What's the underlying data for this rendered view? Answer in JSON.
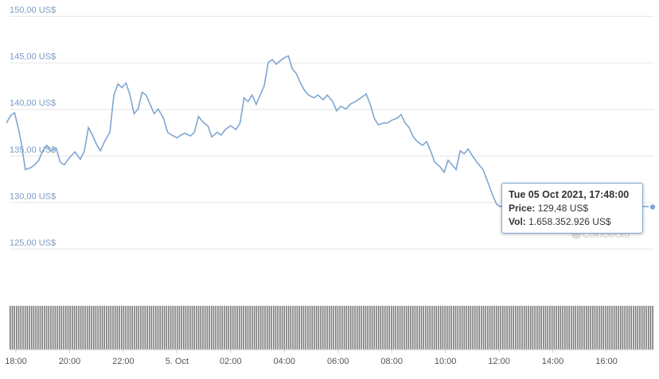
{
  "chart_data": {
    "type": "line",
    "title": "",
    "y_axis": {
      "ylim": [
        125,
        150
      ],
      "ticks": [
        125,
        130,
        135,
        140,
        145,
        150
      ],
      "tick_labels": [
        "125,00 US$",
        "130,00 US$",
        "135,00 US$",
        "140,00 US$",
        "145,00 US$",
        "150,00 US$"
      ]
    },
    "x_axis": {
      "range_hours": [
        17.65,
        41.9
      ],
      "ticks": [
        18,
        20,
        22,
        24,
        26,
        28,
        30,
        32,
        34,
        36,
        38,
        40
      ],
      "tick_labels": [
        "18:00",
        "20:00",
        "22:00",
        "5. Oct",
        "02:00",
        "04:00",
        "06:00",
        "08:00",
        "10:00",
        "12:00",
        "14:00",
        "16:00"
      ]
    },
    "series": [
      {
        "points": [
          [
            17.65,
            138.5
          ],
          [
            17.8,
            139.3
          ],
          [
            17.95,
            139.6
          ],
          [
            18.1,
            137.8
          ],
          [
            18.2,
            136.4
          ],
          [
            18.35,
            133.5
          ],
          [
            18.55,
            133.7
          ],
          [
            18.7,
            134.0
          ],
          [
            18.85,
            134.5
          ],
          [
            19.0,
            135.5
          ],
          [
            19.15,
            136.1
          ],
          [
            19.3,
            135.5
          ],
          [
            19.5,
            135.8
          ],
          [
            19.65,
            134.3
          ],
          [
            19.8,
            134.0
          ],
          [
            20.0,
            134.8
          ],
          [
            20.2,
            135.4
          ],
          [
            20.4,
            134.6
          ],
          [
            20.55,
            135.5
          ],
          [
            20.7,
            138.0
          ],
          [
            20.85,
            137.2
          ],
          [
            21.0,
            136.2
          ],
          [
            21.15,
            135.5
          ],
          [
            21.3,
            136.5
          ],
          [
            21.5,
            137.5
          ],
          [
            21.65,
            141.5
          ],
          [
            21.8,
            142.7
          ],
          [
            21.95,
            142.3
          ],
          [
            22.1,
            142.8
          ],
          [
            22.25,
            141.5
          ],
          [
            22.4,
            139.5
          ],
          [
            22.55,
            140.0
          ],
          [
            22.7,
            141.8
          ],
          [
            22.85,
            141.5
          ],
          [
            23.0,
            140.5
          ],
          [
            23.15,
            139.5
          ],
          [
            23.3,
            140.0
          ],
          [
            23.5,
            139.0
          ],
          [
            23.65,
            137.5
          ],
          [
            23.8,
            137.2
          ],
          [
            24.0,
            136.9
          ],
          [
            24.15,
            137.2
          ],
          [
            24.3,
            137.4
          ],
          [
            24.5,
            137.1
          ],
          [
            24.65,
            137.5
          ],
          [
            24.8,
            139.2
          ],
          [
            25.0,
            138.5
          ],
          [
            25.15,
            138.2
          ],
          [
            25.3,
            137.0
          ],
          [
            25.5,
            137.5
          ],
          [
            25.65,
            137.2
          ],
          [
            25.8,
            137.8
          ],
          [
            26.0,
            138.2
          ],
          [
            26.2,
            137.8
          ],
          [
            26.35,
            138.5
          ],
          [
            26.5,
            141.2
          ],
          [
            26.65,
            140.8
          ],
          [
            26.8,
            141.5
          ],
          [
            26.95,
            140.5
          ],
          [
            27.1,
            141.5
          ],
          [
            27.25,
            142.5
          ],
          [
            27.4,
            145.0
          ],
          [
            27.55,
            145.3
          ],
          [
            27.7,
            144.8
          ],
          [
            27.85,
            145.2
          ],
          [
            28.0,
            145.5
          ],
          [
            28.15,
            145.7
          ],
          [
            28.3,
            144.3
          ],
          [
            28.45,
            143.8
          ],
          [
            28.6,
            142.8
          ],
          [
            28.75,
            142.0
          ],
          [
            28.9,
            141.5
          ],
          [
            29.1,
            141.2
          ],
          [
            29.25,
            141.5
          ],
          [
            29.45,
            141.0
          ],
          [
            29.6,
            141.5
          ],
          [
            29.8,
            140.8
          ],
          [
            29.95,
            139.8
          ],
          [
            30.1,
            140.3
          ],
          [
            30.3,
            140.0
          ],
          [
            30.45,
            140.5
          ],
          [
            30.65,
            140.8
          ],
          [
            30.85,
            141.2
          ],
          [
            31.05,
            141.6
          ],
          [
            31.2,
            140.5
          ],
          [
            31.35,
            139.0
          ],
          [
            31.5,
            138.3
          ],
          [
            31.7,
            138.5
          ],
          [
            31.85,
            138.5
          ],
          [
            32.0,
            138.8
          ],
          [
            32.2,
            139.0
          ],
          [
            32.35,
            139.4
          ],
          [
            32.5,
            138.5
          ],
          [
            32.65,
            138.0
          ],
          [
            32.8,
            137.0
          ],
          [
            32.95,
            136.5
          ],
          [
            33.15,
            136.1
          ],
          [
            33.3,
            136.5
          ],
          [
            33.45,
            135.5
          ],
          [
            33.6,
            134.3
          ],
          [
            33.8,
            133.8
          ],
          [
            33.95,
            133.2
          ],
          [
            34.1,
            134.5
          ],
          [
            34.25,
            134.0
          ],
          [
            34.4,
            133.5
          ],
          [
            34.55,
            135.5
          ],
          [
            34.7,
            135.2
          ],
          [
            34.85,
            135.7
          ],
          [
            35.0,
            135.0
          ],
          [
            35.2,
            134.2
          ],
          [
            35.4,
            133.5
          ],
          [
            35.6,
            132.0
          ],
          [
            35.75,
            130.8
          ],
          [
            35.9,
            129.8
          ],
          [
            36.05,
            129.5
          ],
          [
            36.2,
            130.0
          ],
          [
            36.4,
            129.7
          ],
          [
            36.55,
            129.8
          ],
          [
            36.7,
            130.8
          ],
          [
            36.85,
            130.0
          ],
          [
            37.05,
            130.5
          ],
          [
            37.2,
            129.8
          ],
          [
            37.35,
            129.5
          ],
          [
            37.5,
            130.3
          ],
          [
            37.7,
            129.7
          ],
          [
            37.85,
            130.5
          ],
          [
            38.0,
            130.2
          ]
        ]
      }
    ],
    "volume_bars": {
      "heights_rel": [
        0.58,
        0.58,
        0.58,
        0.58,
        0.58,
        0.58,
        0.58,
        0.58,
        0.58,
        0.58,
        0.58,
        0.58,
        0.58,
        0.58,
        0.58,
        0.58,
        0.58,
        0.58,
        0.58,
        0.58,
        0.58,
        0.58,
        0.58,
        0.58,
        0.58,
        0.58,
        0.58,
        0.58,
        0.58,
        0.58,
        0.58,
        0.58,
        0.58,
        0.58,
        0.58,
        0.58,
        0.58,
        0.58,
        0.58,
        0.58,
        0.58,
        0.58,
        0.58,
        0.58,
        0.58,
        0.58,
        0.58,
        0.58,
        0.58,
        0.58,
        0.58,
        0.58,
        0.58,
        0.58,
        0.58,
        0.58,
        0.58,
        0.58,
        0.58,
        0.58,
        0.58,
        0.58,
        0.58,
        0.58,
        0.58,
        0.58,
        0.58,
        0.58,
        0.58,
        0.58,
        0.58,
        0.58,
        0.58,
        0.58,
        0.58,
        0.58,
        0.58,
        0.58,
        0.58,
        0.58,
        0.58,
        0.58,
        0.58,
        0.58,
        0.58,
        0.58,
        0.58,
        0.58,
        0.58,
        0.58,
        0.58,
        0.58,
        0.58,
        0.58,
        0.58,
        0.58,
        0.58,
        0.58,
        0.58,
        0.58,
        0.58,
        0.58,
        0.58,
        0.58,
        0.58,
        0.58,
        0.58,
        0.58,
        0.58,
        0.58,
        0.58,
        0.58,
        0.58,
        0.58,
        0.58,
        0.58,
        0.58,
        0.58,
        0.58,
        0.58,
        0.58,
        0.58,
        0.58,
        0.58,
        0.58,
        0.58,
        0.58,
        0.58,
        0.58,
        0.58,
        0.58,
        0.58,
        0.58,
        0.58,
        0.58,
        0.58,
        0.58,
        0.58,
        0.58,
        0.58,
        0.58,
        0.58,
        0.58,
        0.58,
        0.58,
        0.58,
        0.58,
        0.58,
        0.58,
        0.58,
        0.58,
        0.58,
        0.58,
        0.58,
        0.58,
        0.58,
        0.58,
        0.58,
        0.58,
        0.58,
        0.58,
        0.58,
        0.58,
        0.58,
        0.58,
        0.58,
        0.58,
        0.58,
        0.58,
        0.58,
        0.58,
        0.58,
        0.58,
        0.58,
        0.58,
        0.58,
        0.58,
        0.58,
        0.58,
        0.58,
        0.58,
        0.58,
        0.58,
        0.58,
        0.58,
        0.58,
        0.58,
        0.58,
        0.58,
        0.58,
        0.58,
        0.58,
        0.58,
        0.58,
        0.58,
        0.58,
        0.58,
        0.58,
        0.58,
        0.58,
        0.58,
        0.58,
        0.58,
        0.58,
        0.58,
        0.58,
        0.58,
        0.58,
        0.58,
        0.58,
        0.58,
        0.58,
        0.58,
        0.58,
        0.58,
        0.58,
        0.58,
        0.58,
        0.58,
        0.58,
        0.58,
        0.58,
        0.58,
        0.58,
        0.58,
        0.58,
        0.58,
        0.58,
        0.58,
        0.58,
        0.58,
        0.58,
        0.58,
        0.58,
        0.58,
        0.58,
        0.58,
        0.58,
        0.58,
        0.58,
        0.58,
        0.58,
        0.58,
        0.58,
        0.58,
        0.58,
        0.58,
        0.58,
        0.58,
        0.58,
        0.58,
        0.58,
        0.58,
        0.58,
        0.58,
        0.58,
        0.58,
        0.58,
        0.58,
        0.58,
        0.58,
        0.58,
        0.58,
        0.58,
        0.58,
        0.58,
        0.58,
        0.58,
        0.58,
        0.58,
        0.58,
        0.58,
        0.58,
        0.58,
        0.58,
        0.58,
        0.58,
        0.58,
        0.58,
        0.58,
        0.58,
        0.58,
        0.58,
        0.58,
        0.58,
        0.58,
        0.58,
        0.58,
        0.58,
        0.58,
        0.58,
        0.58,
        0.58,
        0.58,
        0.58,
        0.58,
        0.58,
        0.58,
        0.58,
        0.58,
        0.58
      ],
      "color": "#7a7a7a"
    },
    "tooltip": {
      "title": "Tue 05 Oct 2021, 17:48:00",
      "price_label": "Price:",
      "price": "129,48 US$",
      "vol_label": "Vol:",
      "vol": "1.658.352.926 US$"
    },
    "line_color": "#7ea6d1",
    "grid": true,
    "watermark": "CoinGecko"
  }
}
